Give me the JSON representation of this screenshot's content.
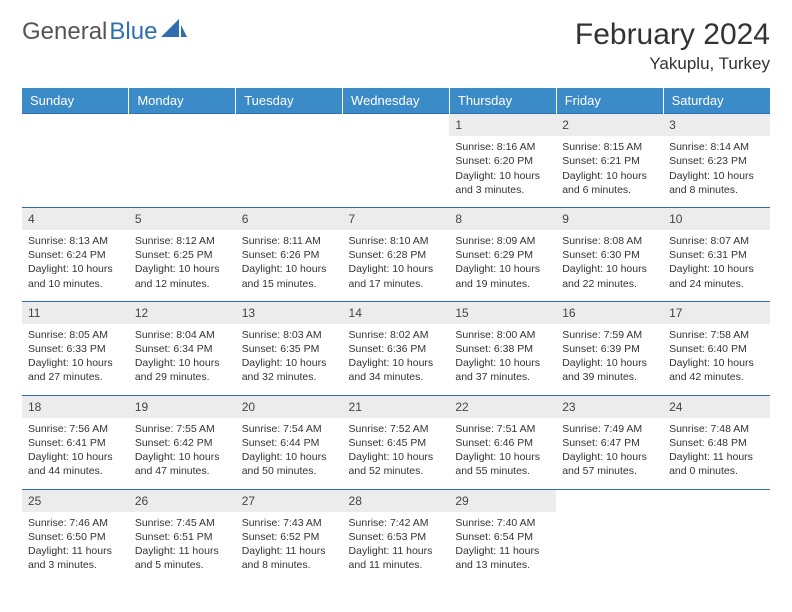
{
  "header": {
    "logo_text1": "General",
    "logo_text2": "Blue",
    "month_title": "February 2024",
    "location": "Yakuplu, Turkey"
  },
  "colors": {
    "header_bg": "#3b8bc9",
    "border": "#2f6fb0",
    "daynum_bg": "#ececec",
    "text": "#333333"
  },
  "weekdays": [
    "Sunday",
    "Monday",
    "Tuesday",
    "Wednesday",
    "Thursday",
    "Friday",
    "Saturday"
  ],
  "weeks": [
    [
      null,
      null,
      null,
      null,
      {
        "n": "1",
        "sr": "8:16 AM",
        "ss": "6:20 PM",
        "dl": "10 hours and 3 minutes."
      },
      {
        "n": "2",
        "sr": "8:15 AM",
        "ss": "6:21 PM",
        "dl": "10 hours and 6 minutes."
      },
      {
        "n": "3",
        "sr": "8:14 AM",
        "ss": "6:23 PM",
        "dl": "10 hours and 8 minutes."
      }
    ],
    [
      {
        "n": "4",
        "sr": "8:13 AM",
        "ss": "6:24 PM",
        "dl": "10 hours and 10 minutes."
      },
      {
        "n": "5",
        "sr": "8:12 AM",
        "ss": "6:25 PM",
        "dl": "10 hours and 12 minutes."
      },
      {
        "n": "6",
        "sr": "8:11 AM",
        "ss": "6:26 PM",
        "dl": "10 hours and 15 minutes."
      },
      {
        "n": "7",
        "sr": "8:10 AM",
        "ss": "6:28 PM",
        "dl": "10 hours and 17 minutes."
      },
      {
        "n": "8",
        "sr": "8:09 AM",
        "ss": "6:29 PM",
        "dl": "10 hours and 19 minutes."
      },
      {
        "n": "9",
        "sr": "8:08 AM",
        "ss": "6:30 PM",
        "dl": "10 hours and 22 minutes."
      },
      {
        "n": "10",
        "sr": "8:07 AM",
        "ss": "6:31 PM",
        "dl": "10 hours and 24 minutes."
      }
    ],
    [
      {
        "n": "11",
        "sr": "8:05 AM",
        "ss": "6:33 PM",
        "dl": "10 hours and 27 minutes."
      },
      {
        "n": "12",
        "sr": "8:04 AM",
        "ss": "6:34 PM",
        "dl": "10 hours and 29 minutes."
      },
      {
        "n": "13",
        "sr": "8:03 AM",
        "ss": "6:35 PM",
        "dl": "10 hours and 32 minutes."
      },
      {
        "n": "14",
        "sr": "8:02 AM",
        "ss": "6:36 PM",
        "dl": "10 hours and 34 minutes."
      },
      {
        "n": "15",
        "sr": "8:00 AM",
        "ss": "6:38 PM",
        "dl": "10 hours and 37 minutes."
      },
      {
        "n": "16",
        "sr": "7:59 AM",
        "ss": "6:39 PM",
        "dl": "10 hours and 39 minutes."
      },
      {
        "n": "17",
        "sr": "7:58 AM",
        "ss": "6:40 PM",
        "dl": "10 hours and 42 minutes."
      }
    ],
    [
      {
        "n": "18",
        "sr": "7:56 AM",
        "ss": "6:41 PM",
        "dl": "10 hours and 44 minutes."
      },
      {
        "n": "19",
        "sr": "7:55 AM",
        "ss": "6:42 PM",
        "dl": "10 hours and 47 minutes."
      },
      {
        "n": "20",
        "sr": "7:54 AM",
        "ss": "6:44 PM",
        "dl": "10 hours and 50 minutes."
      },
      {
        "n": "21",
        "sr": "7:52 AM",
        "ss": "6:45 PM",
        "dl": "10 hours and 52 minutes."
      },
      {
        "n": "22",
        "sr": "7:51 AM",
        "ss": "6:46 PM",
        "dl": "10 hours and 55 minutes."
      },
      {
        "n": "23",
        "sr": "7:49 AM",
        "ss": "6:47 PM",
        "dl": "10 hours and 57 minutes."
      },
      {
        "n": "24",
        "sr": "7:48 AM",
        "ss": "6:48 PM",
        "dl": "11 hours and 0 minutes."
      }
    ],
    [
      {
        "n": "25",
        "sr": "7:46 AM",
        "ss": "6:50 PM",
        "dl": "11 hours and 3 minutes."
      },
      {
        "n": "26",
        "sr": "7:45 AM",
        "ss": "6:51 PM",
        "dl": "11 hours and 5 minutes."
      },
      {
        "n": "27",
        "sr": "7:43 AM",
        "ss": "6:52 PM",
        "dl": "11 hours and 8 minutes."
      },
      {
        "n": "28",
        "sr": "7:42 AM",
        "ss": "6:53 PM",
        "dl": "11 hours and 11 minutes."
      },
      {
        "n": "29",
        "sr": "7:40 AM",
        "ss": "6:54 PM",
        "dl": "11 hours and 13 minutes."
      },
      null,
      null
    ]
  ],
  "labels": {
    "sunrise": "Sunrise:",
    "sunset": "Sunset:",
    "daylight": "Daylight:"
  }
}
